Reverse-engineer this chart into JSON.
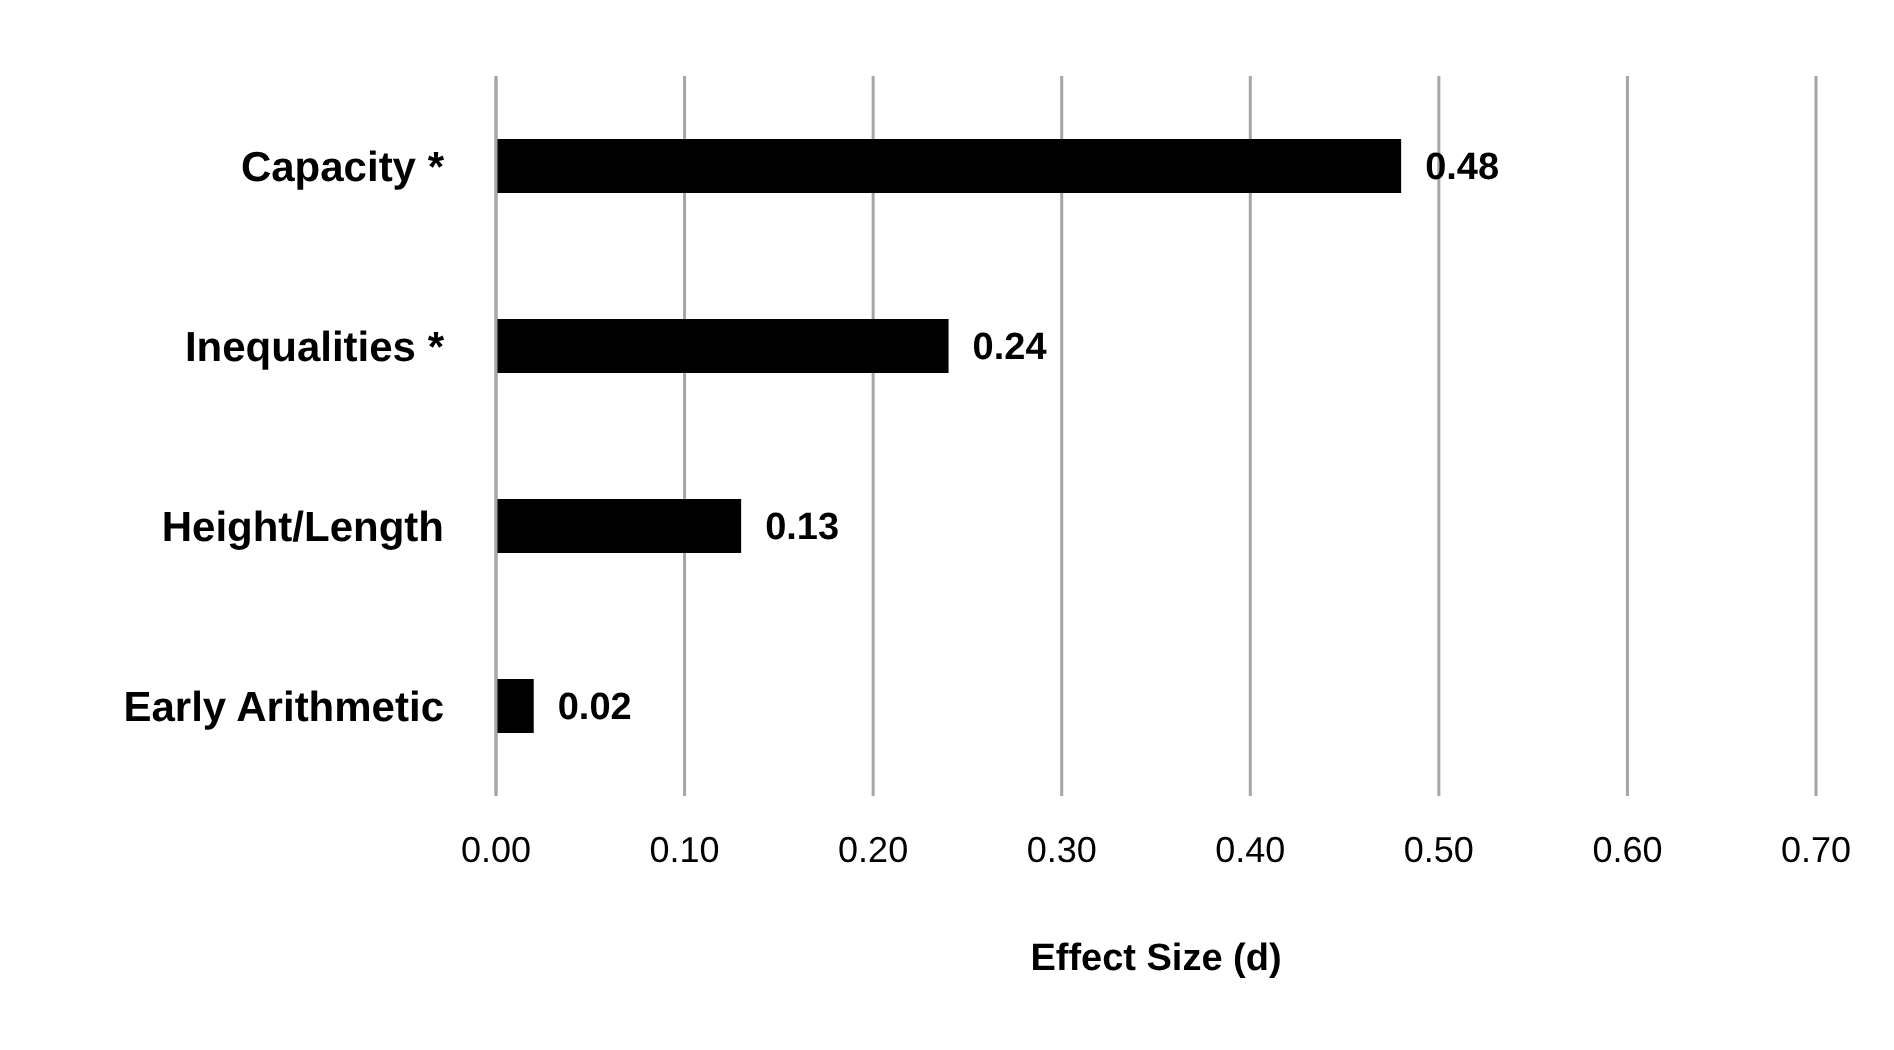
{
  "chart_data": {
    "type": "bar",
    "orientation": "horizontal",
    "xlabel": "Effect Size (d)",
    "categories": [
      "Capacity *",
      "Inequalities *",
      "Height/Length",
      "Early Arithmetic"
    ],
    "values": [
      0.48,
      0.24,
      0.13,
      0.02
    ],
    "color": "#000000",
    "value_labels": [
      "0.48",
      "0.24",
      "0.13",
      "0.02"
    ],
    "xlim": [
      0,
      0.7
    ],
    "xticks": [
      {
        "value": 0,
        "label": "0.00"
      },
      {
        "value": 0.1,
        "label": "0.10"
      },
      {
        "value": 0.2,
        "label": "0.20"
      },
      {
        "value": 0.3,
        "label": "0.30"
      },
      {
        "value": 0.4,
        "label": "0.40"
      },
      {
        "value": 0.5,
        "label": "0.50"
      },
      {
        "value": 0.6,
        "label": "0.60"
      },
      {
        "value": 0.7,
        "label": "0.70"
      }
    ],
    "grid": "x"
  }
}
